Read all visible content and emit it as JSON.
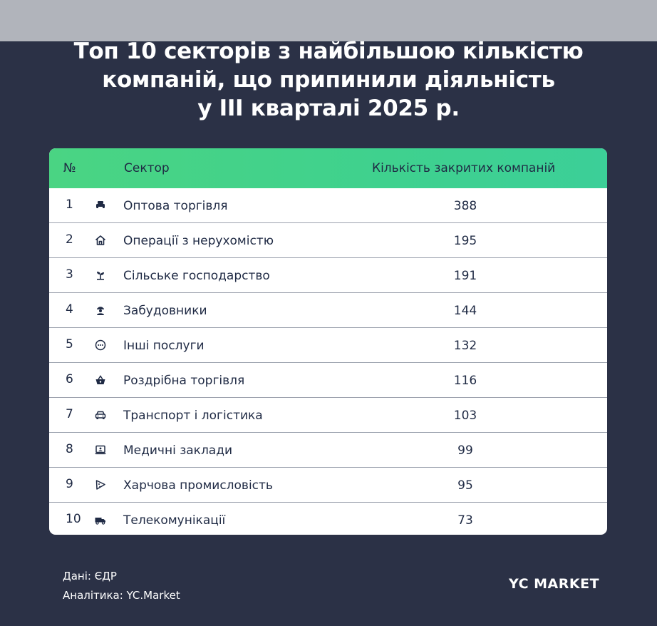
{
  "title_lines": [
    "Топ 10 секторів з найбільшою кількістю",
    "компаній, що припинили діяльність",
    "у III кварталі 2025 р."
  ],
  "table": {
    "headers": {
      "num": "№",
      "sector": "Сектор",
      "count": "Кількість закритих компаній"
    }
  },
  "chart_data": {
    "type": "table",
    "columns": [
      "№",
      "Сектор",
      "Кількість закритих компаній"
    ],
    "rows": [
      {
        "num": "1",
        "sector": "Оптова торгівля",
        "count": "388",
        "icon": "printer-icon"
      },
      {
        "num": "2",
        "sector": "Операції з нерухомістю",
        "count": "195",
        "icon": "house-icon"
      },
      {
        "num": "3",
        "sector": "Сільське господарство",
        "count": "191",
        "icon": "sprout-icon"
      },
      {
        "num": "4",
        "sector": "Забудовники",
        "count": "144",
        "icon": "builder-icon"
      },
      {
        "num": "5",
        "sector": "Інші послуги",
        "count": "132",
        "icon": "dots-circle-icon"
      },
      {
        "num": "6",
        "sector": "Роздрібна торгівля",
        "count": "116",
        "icon": "basket-icon"
      },
      {
        "num": "7",
        "sector": "Транспорт і логістика",
        "count": "103",
        "icon": "car-icon"
      },
      {
        "num": "8",
        "sector": "Медичні заклади",
        "count": "99",
        "icon": "monitor-icon"
      },
      {
        "num": "9",
        "sector": "Харчова промисловість",
        "count": "95",
        "icon": "pizza-slice-icon"
      },
      {
        "num": "10",
        "sector": "Телекомунікації",
        "count": "73",
        "icon": "truck-icon"
      }
    ]
  },
  "footer": {
    "source": "Дані: ЄДР",
    "analytics": "Аналітика: YC.Market"
  },
  "logo": {
    "text": "YC MARKET"
  },
  "colors": {
    "background": "#2b3146",
    "header_green": "#44d38b",
    "text_dark": "#1f2a44",
    "top_band": "#b1b4bb"
  }
}
